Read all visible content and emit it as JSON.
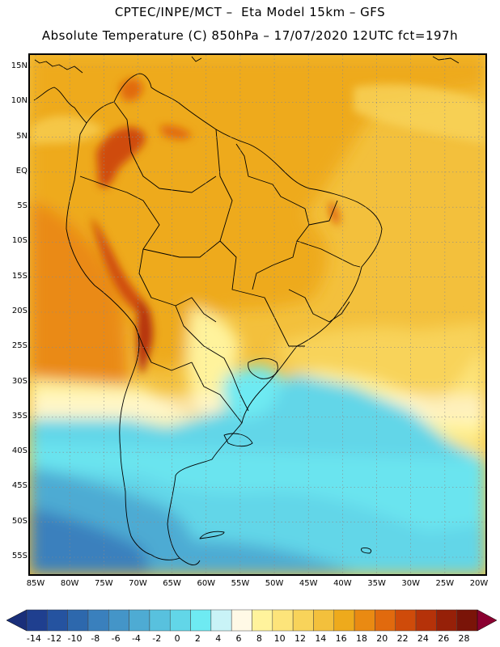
{
  "header": {
    "line1": "CPTEC/INPE/MCT –  Eta Model 15km – GFS",
    "line2": "Absolute Temperature (C) 850hPa – 17/07/2020 12UTC fct=197h"
  },
  "map": {
    "lat_labels": [
      "15N",
      "10N",
      "5N",
      "EQ",
      "5S",
      "10S",
      "15S",
      "20S",
      "25S",
      "30S",
      "35S",
      "40S",
      "45S",
      "50S",
      "55S"
    ],
    "lat_values": [
      15,
      10,
      5,
      0,
      -5,
      -10,
      -15,
      -20,
      -25,
      -30,
      -35,
      -40,
      -45,
      -50,
      -55
    ],
    "lon_labels": [
      "85W",
      "80W",
      "75W",
      "70W",
      "65W",
      "60W",
      "55W",
      "50W",
      "45W",
      "40W",
      "35W",
      "30W",
      "25W",
      "20W"
    ],
    "lon_values": [
      -85,
      -80,
      -75,
      -70,
      -65,
      -60,
      -55,
      -50,
      -45,
      -40,
      -35,
      -30,
      -25,
      -20
    ]
  },
  "colorbar": {
    "labels": [
      "-14",
      "-12",
      "-10",
      "-8",
      "-6",
      "-4",
      "-2",
      "0",
      "2",
      "4",
      "6",
      "8",
      "10",
      "12",
      "14",
      "16",
      "18",
      "20",
      "22",
      "24",
      "26",
      "28"
    ],
    "colors": [
      "#1f3f8f",
      "#2553a0",
      "#2d68ad",
      "#3a80bd",
      "#4495c8",
      "#4eabd3",
      "#58c1de",
      "#62d6e8",
      "#6eeaf2",
      "#c9f3f7",
      "#fff9e6",
      "#fff39c",
      "#fde47a",
      "#f8d35a",
      "#f3c03c",
      "#eeaa1c",
      "#ea8a12",
      "#e16a0e",
      "#cf4b0a",
      "#b53209",
      "#962008",
      "#7a1408"
    ],
    "under_color": "#1a2f7a",
    "over_color": "#8a0030"
  },
  "colors": {
    "land_border": "#000000",
    "grid": "#8a8a8a"
  }
}
